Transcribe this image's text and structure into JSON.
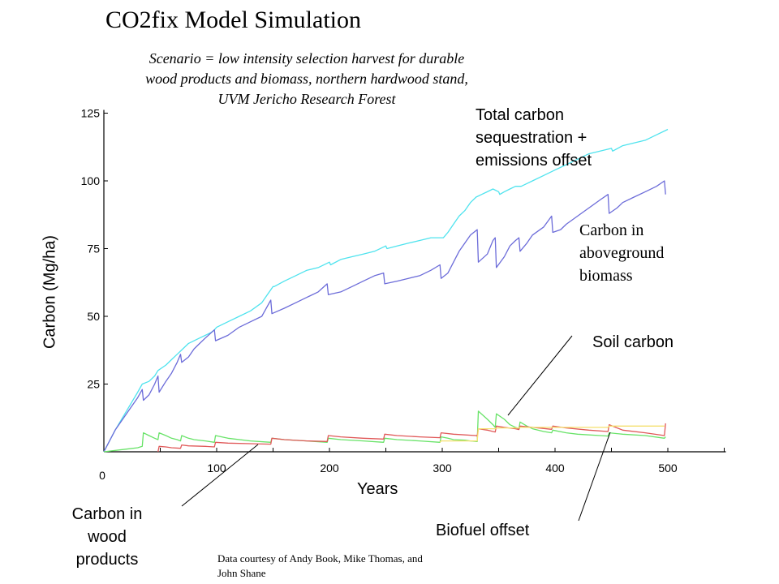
{
  "chart_data": {
    "type": "line",
    "title": "CO2fix Model Simulation",
    "subtitle_lines": [
      "Scenario = low intensity selection harvest for durable",
      "wood products and biomass, northern hardwood stand,",
      "UVM Jericho Research Forest"
    ],
    "xlabel": "Years",
    "ylabel": "Carbon (Mg/ha)",
    "xlim": [
      0,
      550
    ],
    "ylim": [
      0,
      125
    ],
    "x_ticks": [
      0,
      100,
      200,
      300,
      400,
      500
    ],
    "y_ticks": [
      25,
      50,
      75,
      100,
      125
    ],
    "grid": false,
    "series": [
      {
        "key": "total",
        "color": "#4fe3ee",
        "x": [
          0,
          10,
          20,
          30,
          34,
          40,
          45,
          48,
          55,
          60,
          65,
          70,
          75,
          80,
          85,
          90,
          95,
          98,
          100,
          110,
          120,
          130,
          140,
          145,
          150,
          151,
          160,
          170,
          180,
          190,
          200,
          201,
          210,
          220,
          230,
          240,
          250,
          251,
          260,
          270,
          280,
          290,
          300,
          301,
          305,
          310,
          315,
          320,
          325,
          330,
          335,
          340,
          345,
          350,
          351,
          355,
          360,
          365,
          370,
          375,
          380,
          390,
          400,
          410,
          420,
          430,
          440,
          450,
          451,
          460,
          470,
          480,
          490,
          500
        ],
        "y": [
          0,
          8,
          15,
          22,
          25,
          26,
          28,
          30,
          32,
          34,
          36,
          38,
          40,
          41,
          42,
          43,
          44,
          45,
          46,
          48,
          50,
          52,
          55,
          58,
          61,
          61,
          63,
          65,
          67,
          68,
          70,
          69,
          71,
          72,
          73,
          74,
          76,
          75,
          76,
          77,
          78,
          79,
          79,
          79,
          81,
          84,
          87,
          89,
          92,
          94,
          95,
          96,
          97,
          96,
          95,
          96,
          97,
          98,
          98,
          99,
          100,
          102,
          104,
          106,
          108,
          110,
          111,
          112,
          111,
          113,
          114,
          115,
          117,
          119
        ]
      },
      {
        "key": "aboveground",
        "color": "#6c6cd9",
        "x": [
          0,
          10,
          20,
          30,
          34,
          35,
          40,
          45,
          48,
          49,
          55,
          60,
          65,
          68,
          69,
          75,
          80,
          85,
          90,
          98,
          99,
          110,
          120,
          130,
          140,
          148,
          149,
          160,
          170,
          180,
          190,
          198,
          199,
          210,
          220,
          230,
          240,
          248,
          249,
          260,
          270,
          280,
          290,
          298,
          299,
          305,
          310,
          315,
          320,
          325,
          331,
          332,
          340,
          345,
          347,
          348,
          355,
          360,
          365,
          368,
          369,
          375,
          380,
          390,
          397,
          398,
          405,
          410,
          420,
          430,
          440,
          447,
          448,
          455,
          460,
          470,
          480,
          490,
          497,
          498
        ],
        "y": [
          0,
          8,
          14,
          20,
          23,
          19,
          21,
          25,
          28,
          22,
          26,
          29,
          33,
          36,
          33,
          35,
          38,
          40,
          42,
          45,
          41,
          43,
          46,
          48,
          50,
          56,
          51,
          53,
          55,
          57,
          59,
          62,
          58,
          59,
          61,
          63,
          65,
          66,
          62,
          63,
          64,
          65,
          67,
          69,
          64,
          66,
          70,
          74,
          77,
          80,
          82,
          70,
          73,
          78,
          79,
          68,
          72,
          76,
          78,
          79,
          74,
          77,
          80,
          83,
          87,
          81,
          82,
          84,
          87,
          90,
          93,
          95,
          88,
          90,
          92,
          94,
          96,
          98,
          100,
          95
        ]
      },
      {
        "key": "soil",
        "color": "#68e368",
        "x": [
          0,
          20,
          30,
          34,
          35,
          40,
          45,
          48,
          49,
          55,
          60,
          65,
          68,
          69,
          75,
          80,
          90,
          98,
          99,
          110,
          130,
          148,
          149,
          160,
          180,
          198,
          199,
          210,
          230,
          248,
          249,
          260,
          280,
          298,
          299,
          305,
          310,
          320,
          325,
          331,
          332,
          340,
          345,
          347,
          348,
          355,
          360,
          365,
          368,
          369,
          375,
          380,
          390,
          397,
          398,
          410,
          420,
          440,
          447,
          448,
          460,
          480,
          497,
          498
        ],
        "y": [
          0,
          1,
          1.5,
          2,
          7,
          6,
          5,
          4.5,
          7,
          6,
          5,
          4.5,
          4,
          6,
          5,
          4.5,
          4,
          3.5,
          6,
          5,
          4,
          3.5,
          5,
          4.5,
          4,
          3.5,
          5,
          4.5,
          4,
          3.5,
          5,
          4.5,
          4,
          3.5,
          5.5,
          5,
          4.5,
          4.3,
          4,
          3.8,
          15,
          12,
          10,
          9,
          14,
          12,
          10,
          9,
          8.5,
          11,
          9.5,
          8.5,
          7.5,
          7,
          8,
          7,
          6.5,
          6,
          5.8,
          7,
          6.5,
          6,
          5,
          5.5
        ]
      },
      {
        "key": "wood",
        "color": "#e05858",
        "x": [
          48,
          49,
          55,
          60,
          68,
          69,
          75,
          90,
          98,
          99,
          110,
          130,
          148,
          149,
          160,
          180,
          198,
          199,
          210,
          230,
          248,
          249,
          260,
          280,
          298,
          299,
          310,
          330,
          331,
          332,
          340,
          345,
          347,
          348,
          355,
          365,
          368,
          369,
          380,
          397,
          398,
          410,
          430,
          447,
          448,
          460,
          480,
          497,
          498
        ],
        "y": [
          0,
          2,
          1.8,
          1.5,
          1.3,
          2.5,
          2.2,
          2,
          1.8,
          3.5,
          3.2,
          3,
          2.8,
          5,
          4.5,
          4,
          3.8,
          6,
          5.5,
          5,
          4.7,
          6.5,
          6,
          5.5,
          5.2,
          7,
          6.5,
          6,
          5.8,
          8.5,
          8,
          7.5,
          7.3,
          9.5,
          9,
          8.5,
          8.2,
          9.5,
          9,
          8.3,
          9.5,
          8.8,
          8,
          7.5,
          10,
          8,
          7,
          6,
          10.5
        ]
      },
      {
        "key": "biofuel",
        "color": "#f5e06e",
        "x": [
          298,
          299,
          330,
          331,
          332,
          347,
          348,
          368,
          369,
          397,
          398,
          447,
          448,
          497
        ],
        "y": [
          3.5,
          4,
          4,
          4,
          8.5,
          8.5,
          8.8,
          8.8,
          9,
          9,
          9,
          9,
          9.5,
          9.5
        ]
      }
    ],
    "annotations": {
      "total_lines": [
        "Total carbon",
        "sequestration +",
        "emissions offset"
      ],
      "aboveground_lines": [
        "Carbon in",
        "aboveground",
        "biomass"
      ],
      "soil": "Soil carbon",
      "wood_lines": [
        "Carbon in",
        "wood",
        "products"
      ],
      "biofuel": "Biofuel offset"
    },
    "credit_lines": [
      "Data courtesy of Andy Book, Mike Thomas, and",
      "John Shane"
    ]
  }
}
